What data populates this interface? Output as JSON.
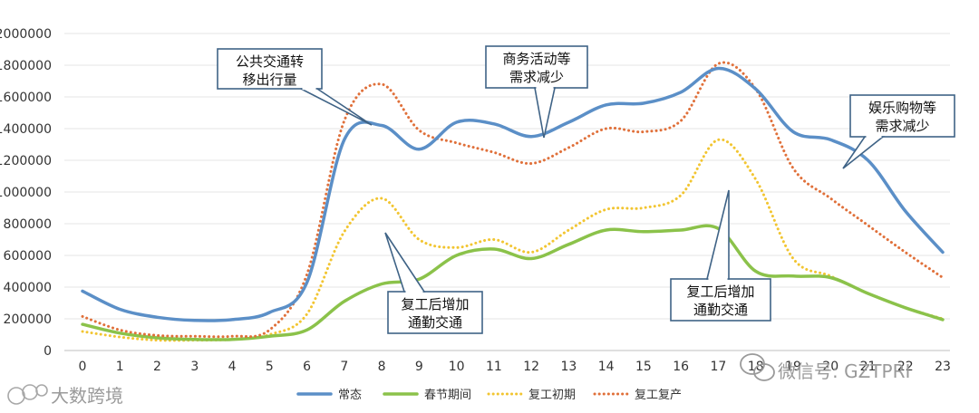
{
  "chart_data": {
    "type": "line",
    "title": "",
    "xlabel": "",
    "ylabel": "",
    "ylim": [
      0,
      2000000
    ],
    "y_ticks": [
      0,
      200000,
      400000,
      600000,
      800000,
      1000000,
      1200000,
      1400000,
      1600000,
      1800000,
      2000000
    ],
    "x": [
      0,
      1,
      2,
      3,
      4,
      5,
      6,
      7,
      8,
      9,
      10,
      11,
      12,
      13,
      14,
      15,
      16,
      17,
      18,
      19,
      20,
      21,
      22,
      23
    ],
    "x_tick_labels": [
      "0",
      "1",
      "2",
      "3",
      "4",
      "5",
      "6",
      "7",
      "8",
      "9",
      "10",
      "11",
      "12",
      "13",
      "14",
      "15",
      "16",
      "17",
      "18",
      "19",
      "20",
      "21",
      "22",
      "23"
    ],
    "grid": true,
    "legend_position": "bottom",
    "series": [
      {
        "name": "常态",
        "color": "#5B8FC7",
        "style": "solid",
        "values": [
          375000,
          260000,
          210000,
          190000,
          195000,
          240000,
          430000,
          1330000,
          1420000,
          1270000,
          1440000,
          1430000,
          1350000,
          1440000,
          1550000,
          1560000,
          1630000,
          1780000,
          1650000,
          1380000,
          1330000,
          1200000,
          880000,
          620000
        ]
      },
      {
        "name": "春节期间",
        "color": "#8BC24A",
        "style": "solid",
        "values": [
          165000,
          110000,
          80000,
          70000,
          70000,
          90000,
          130000,
          310000,
          420000,
          450000,
          600000,
          640000,
          580000,
          670000,
          760000,
          750000,
          760000,
          770000,
          500000,
          470000,
          460000,
          360000,
          270000,
          195000
        ]
      },
      {
        "name": "复工初期",
        "color": "#F2C531",
        "style": "dotted",
        "values": [
          120000,
          85000,
          65000,
          65000,
          70000,
          100000,
          230000,
          750000,
          960000,
          700000,
          650000,
          700000,
          620000,
          760000,
          890000,
          900000,
          980000,
          1330000,
          1080000,
          580000,
          470000,
          360000,
          270000,
          200000
        ]
      },
      {
        "name": "复工复产",
        "color": "#E0703A",
        "style": "dotted",
        "values": [
          215000,
          130000,
          95000,
          90000,
          90000,
          130000,
          480000,
          1450000,
          1680000,
          1390000,
          1310000,
          1250000,
          1180000,
          1280000,
          1400000,
          1380000,
          1450000,
          1810000,
          1650000,
          1150000,
          960000,
          790000,
          620000,
          460000
        ]
      }
    ],
    "annotations": [
      {
        "id": "public-transit",
        "lines": [
          "公共交通转",
          "移出行量"
        ]
      },
      {
        "id": "business",
        "lines": [
          "商务活动等",
          "需求减少"
        ]
      },
      {
        "id": "entertainment",
        "lines": [
          "娱乐购物等",
          "需求减少"
        ]
      },
      {
        "id": "commute-left",
        "lines": [
          "复工后增加",
          "通勤交通"
        ]
      },
      {
        "id": "commute-right",
        "lines": [
          "复工后增加",
          "通勤交通"
        ]
      }
    ]
  },
  "watermarks": {
    "left": "大数跨境",
    "right": "微信号: GZTPRI"
  },
  "icons": {
    "left_watermark": "bubble-logo-icon",
    "right_watermark": "wechat-icon"
  }
}
